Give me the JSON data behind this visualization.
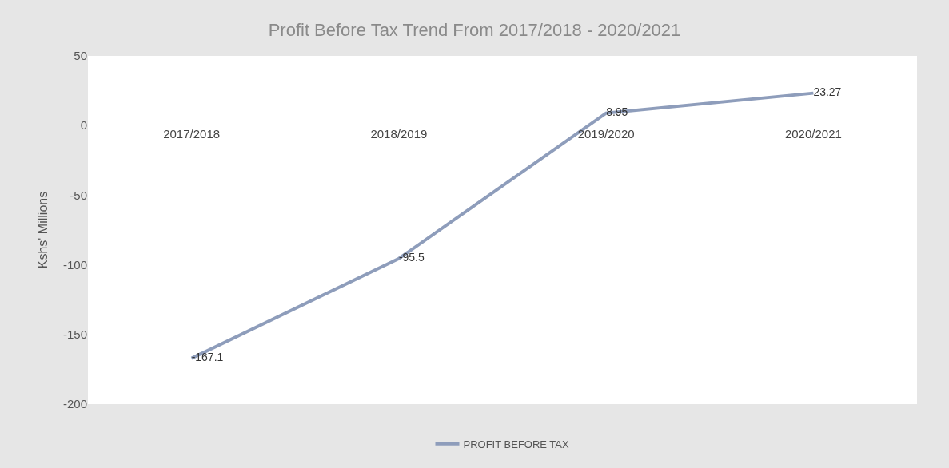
{
  "chart_data": {
    "type": "line",
    "title": "Profit Before Tax Trend From 2017/2018 - 2020/2021",
    "ylabel": "Kshs' Millions",
    "categories": [
      "2017/2018",
      "2018/2019",
      "2019/2020",
      "2020/2021"
    ],
    "series": [
      {
        "name": "PROFIT BEFORE TAX",
        "color": "#8e9dbb",
        "values": [
          -167.1,
          -95.5,
          8.95,
          23.27
        ]
      }
    ],
    "ylim": [
      -200,
      50
    ],
    "yticks": [
      -200,
      -150,
      -100,
      -50,
      0,
      50
    ],
    "data_labels": true,
    "legend": "bottom",
    "marker": "none",
    "line_style": "solid"
  }
}
